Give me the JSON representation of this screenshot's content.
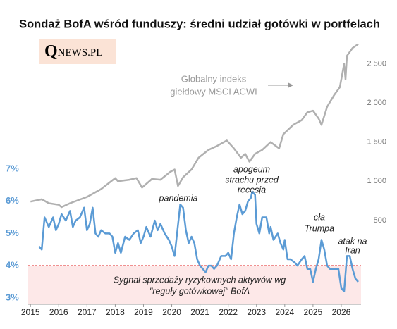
{
  "chart_data": {
    "type": "line",
    "title": "Sondaż BofA wśród funduszy: średni udział gotówki w portfelach",
    "logo": {
      "mark": "Q",
      "text": "NEWS.PL"
    },
    "xlim": [
      2014.92,
      2026.7
    ],
    "xticks": [
      2015,
      2016,
      2017,
      2018,
      2019,
      2020,
      2021,
      2022,
      2023,
      2024,
      2025,
      2026
    ],
    "ylim": [
      2.8,
      11
    ],
    "yticks": [
      {
        "value": 3,
        "label": "3%"
      },
      {
        "value": 4,
        "label": "4%"
      },
      {
        "value": 5,
        "label": "5%"
      },
      {
        "value": 6,
        "label": "6%"
      },
      {
        "value": 7,
        "label": "7%"
      }
    ],
    "y2lim": [
      -570,
      2800
    ],
    "y2ticks": [
      {
        "value": 500,
        "label": "500"
      },
      {
        "value": 1000,
        "label": "1 000"
      },
      {
        "value": 1500,
        "label": "1 500"
      },
      {
        "value": 2000,
        "label": "2 000"
      },
      {
        "value": 2500,
        "label": "2 500"
      }
    ],
    "threshold": 4,
    "threshold_color": "#e02020",
    "series": [
      {
        "color": "#5b9bd5",
        "x": [
          2015.3,
          2015.4,
          2015.5,
          2015.65,
          2015.8,
          2015.9,
          2016.0,
          2016.1,
          2016.25,
          2016.4,
          2016.5,
          2016.6,
          2016.75,
          2016.9,
          2017.0,
          2017.1,
          2017.2,
          2017.3,
          2017.4,
          2017.5,
          2017.65,
          2017.8,
          2017.9,
          2018.0,
          2018.1,
          2018.2,
          2018.35,
          2018.5,
          2018.65,
          2018.8,
          2018.9,
          2019.0,
          2019.1,
          2019.25,
          2019.4,
          2019.5,
          2019.6,
          2019.75,
          2019.9,
          2020.0,
          2020.1,
          2020.2,
          2020.3,
          2020.4,
          2020.5,
          2020.6,
          2020.7,
          2020.8,
          2020.9,
          2021.0,
          2021.1,
          2021.2,
          2021.3,
          2021.4,
          2021.5,
          2021.6,
          2021.75,
          2021.9,
          2022.0,
          2022.1,
          2022.2,
          2022.3,
          2022.4,
          2022.5,
          2022.6,
          2022.7,
          2022.8,
          2022.85,
          2022.95,
          2023.0,
          2023.1,
          2023.2,
          2023.35,
          2023.45,
          2023.5,
          2023.6,
          2023.75,
          2023.85,
          2023.95,
          2024.0,
          2024.1,
          2024.2,
          2024.35,
          2024.45,
          2024.6,
          2024.7,
          2024.8,
          2024.9,
          2025.0,
          2025.1,
          2025.2,
          2025.3,
          2025.4,
          2025.5,
          2025.6,
          2025.75,
          2025.9,
          2026.0,
          2026.1,
          2026.2,
          2026.3,
          2026.4,
          2026.5,
          2026.6
        ],
        "values": [
          4.6,
          4.5,
          5.5,
          5.2,
          5.5,
          5.1,
          5.3,
          5.6,
          5.4,
          5.7,
          5.2,
          5.4,
          5.5,
          5.8,
          5.1,
          5.3,
          5.8,
          5.0,
          4.9,
          5.1,
          5.0,
          5.0,
          4.9,
          4.4,
          4.7,
          4.4,
          4.9,
          4.8,
          5.0,
          5.1,
          4.7,
          4.9,
          5.2,
          4.9,
          5.4,
          5.1,
          5.3,
          5.0,
          4.8,
          4.6,
          4.3,
          5.1,
          5.9,
          5.8,
          5.1,
          4.7,
          4.9,
          4.7,
          4.2,
          4.0,
          3.9,
          3.8,
          4.0,
          4.0,
          3.9,
          4.0,
          4.3,
          4.3,
          4.4,
          4.2,
          5.0,
          5.5,
          5.9,
          5.6,
          5.7,
          6.0,
          6.1,
          6.3,
          6.2,
          5.3,
          5.0,
          5.5,
          5.5,
          5.0,
          5.2,
          4.8,
          5.0,
          4.7,
          4.5,
          4.8,
          4.2,
          4.2,
          4.1,
          4.0,
          4.2,
          4.3,
          3.9,
          3.9,
          3.5,
          3.9,
          4.2,
          4.8,
          4.5,
          4.0,
          3.9,
          3.9,
          3.9,
          3.3,
          3.2,
          4.3,
          4.3,
          3.9,
          3.6,
          3.5
        ]
      },
      {
        "color": "#b0b0b0",
        "axis": "y2",
        "x": [
          2015.0,
          2015.4,
          2015.65,
          2016.0,
          2016.1,
          2016.4,
          2016.7,
          2017.0,
          2017.5,
          2018.0,
          2018.1,
          2018.5,
          2018.75,
          2018.95,
          2019.3,
          2019.6,
          2019.95,
          2020.1,
          2020.22,
          2020.4,
          2020.7,
          2020.95,
          2021.3,
          2021.6,
          2021.95,
          2022.2,
          2022.45,
          2022.6,
          2022.75,
          2022.95,
          2023.2,
          2023.5,
          2023.8,
          2023.95,
          2024.3,
          2024.6,
          2024.8,
          2025.0,
          2025.2,
          2025.3,
          2025.5,
          2025.75,
          2025.95,
          2026.0,
          2026.1,
          2026.15,
          2026.2,
          2026.4,
          2026.6
        ],
        "values": [
          740,
          770,
          720,
          700,
          670,
          720,
          760,
          800,
          900,
          1040,
          1000,
          1020,
          1040,
          920,
          1030,
          1020,
          1120,
          1150,
          940,
          1050,
          1150,
          1300,
          1400,
          1450,
          1520,
          1420,
          1300,
          1350,
          1250,
          1350,
          1400,
          1500,
          1420,
          1600,
          1720,
          1780,
          1880,
          1900,
          1800,
          1720,
          1950,
          2100,
          2200,
          2300,
          2500,
          2300,
          2600,
          2700,
          2750
        ]
      }
    ],
    "annotations": [
      {
        "lines": [
          "pandemia"
        ]
      },
      {
        "lines": [
          "apogeum",
          "strachu przed",
          "recesją"
        ]
      },
      {
        "lines": [
          "cła",
          "Trumpa"
        ]
      },
      {
        "lines": [
          "atak na",
          "Iran"
        ]
      },
      {
        "lines": [
          "Globalny indeks",
          "giełdowy MSCI ACWI"
        ]
      },
      {
        "lines": [
          "Sygnał sprzedaży ryzykownych aktywów wg",
          "\"reguły gotówkowej\" BofA"
        ]
      }
    ]
  }
}
